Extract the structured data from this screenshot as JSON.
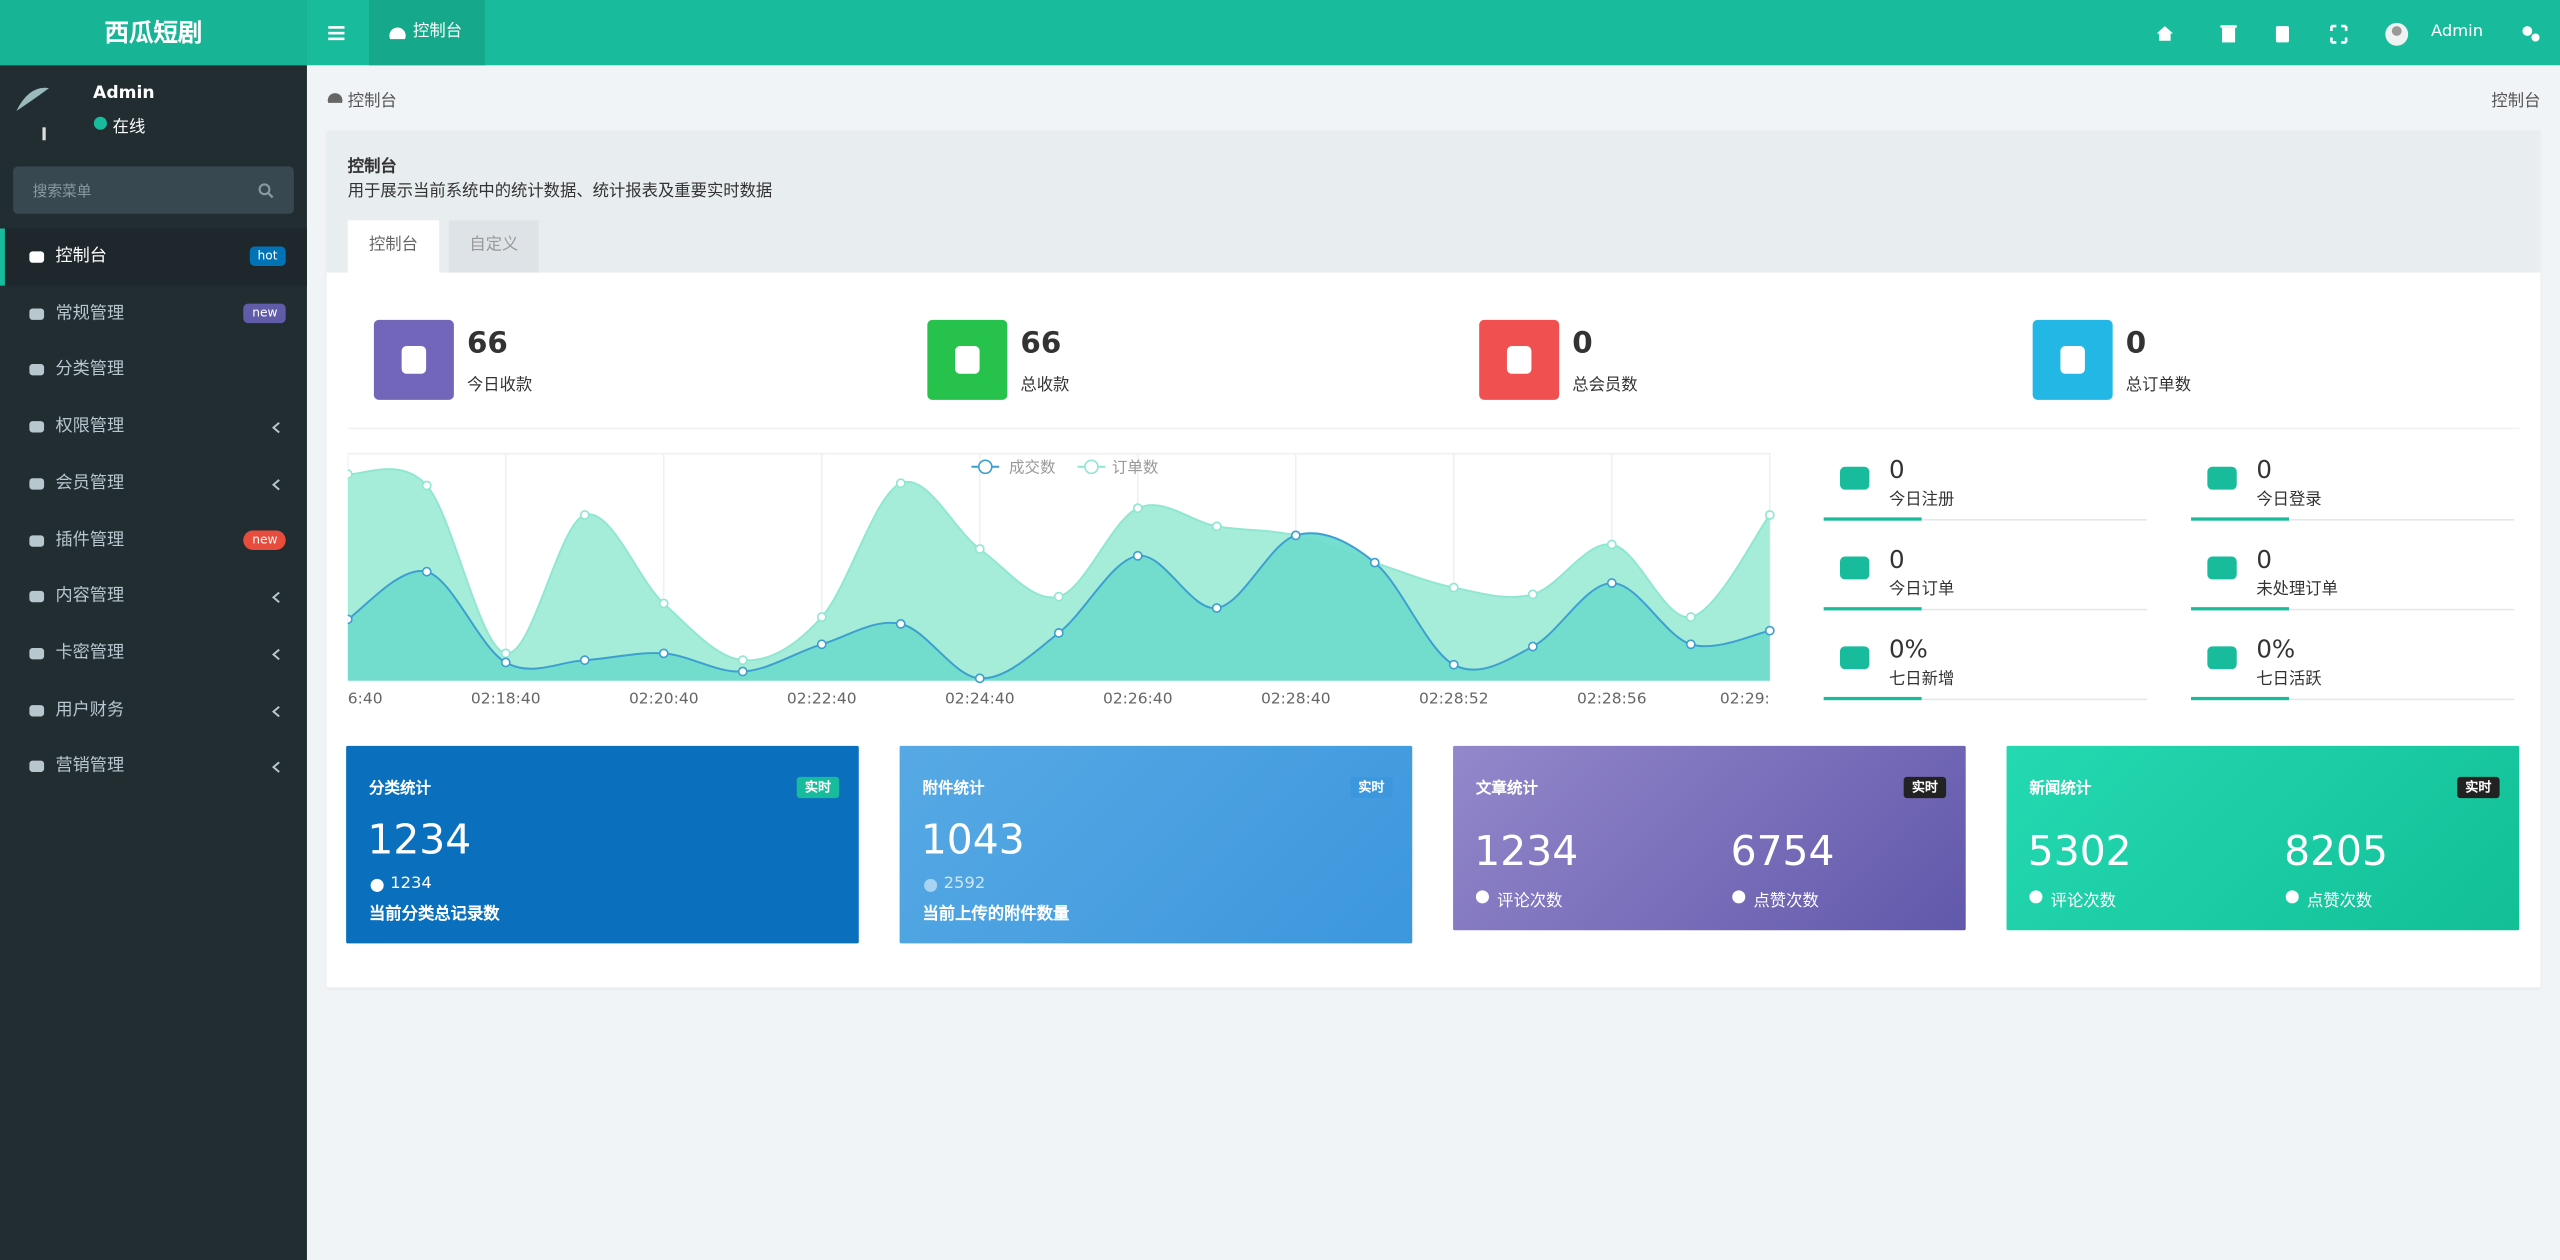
{
  "header": {
    "logo": "西瓜短剧",
    "tab": "控制台",
    "user": "Admin"
  },
  "sidebar": {
    "user": "Admin",
    "status": "在线",
    "search_placeholder": "搜索菜单",
    "menu": [
      {
        "label": "控制台",
        "badge": "hot",
        "badge_color": "#0073b7"
      },
      {
        "label": "常规管理",
        "badge": "new",
        "badge_color": "#605ca8"
      },
      {
        "label": "分类管理"
      },
      {
        "label": "权限管理",
        "submenu": true
      },
      {
        "label": "会员管理",
        "submenu": true
      },
      {
        "label": "插件管理",
        "badge": "new",
        "badge_color": "#e74c3c"
      },
      {
        "label": "内容管理",
        "submenu": true
      },
      {
        "label": "卡密管理",
        "submenu": true
      },
      {
        "label": "用户财务",
        "submenu": true
      },
      {
        "label": "营销管理",
        "submenu": true
      }
    ]
  },
  "breadcrumb": {
    "left": "控制台",
    "right": "控制台"
  },
  "panel": {
    "title": "控制台",
    "description": "用于展示当前系统中的统计数据、统计报表及重要实时数据",
    "tabs": [
      "控制台",
      "自定义"
    ]
  },
  "stats": [
    {
      "value": 66,
      "label": "今日收款",
      "color": "#7266ba"
    },
    {
      "value": 66,
      "label": "总收款",
      "color": "#27c24c"
    },
    {
      "value": 0,
      "label": "总会员数",
      "color": "#f05050"
    },
    {
      "value": 0,
      "label": "总订单数",
      "color": "#23b7e5"
    }
  ],
  "chart": {
    "type": "area",
    "categories": [
      "6:40",
      null,
      "02:18:40",
      null,
      "02:20:40",
      null,
      "02:22:40",
      null,
      "02:24:40",
      null,
      "02:26:40",
      null,
      "02:28:40",
      null,
      "02:28:52",
      null,
      "02:28:56",
      null,
      "02:29:"
    ],
    "ylim": [
      0,
      100
    ],
    "series": [
      {
        "name": "成交数",
        "color": "#3c9fd0",
        "fill": "#6fdccb",
        "values": [
          27,
          48,
          8,
          9,
          12,
          4,
          16,
          25,
          1,
          21,
          55,
          32,
          64,
          52,
          7,
          15,
          43,
          16,
          22
        ]
      },
      {
        "name": "订单数",
        "color": "#8fe6d2",
        "fill": "#a0ecd7",
        "values": [
          91,
          86,
          12,
          73,
          34,
          9,
          28,
          87,
          58,
          37,
          76,
          68,
          64,
          52,
          41,
          38,
          60,
          28,
          73
        ]
      }
    ]
  },
  "mini_stats": [
    {
      "value": "0",
      "label": "今日注册"
    },
    {
      "value": "0",
      "label": "今日登录"
    },
    {
      "value": "0",
      "label": "今日订单"
    },
    {
      "value": "0",
      "label": "未处理订单"
    },
    {
      "value": "0%",
      "label": "七日新增"
    },
    {
      "value": "0%",
      "label": "七日活跃"
    }
  ],
  "cards": [
    {
      "title": "分类统计",
      "badge": "实时",
      "value": 1234,
      "sub_value": 1234,
      "sub_label": "当前分类总记录数"
    },
    {
      "title": "附件统计",
      "badge": "实时",
      "value": 1043,
      "sub_value": 2592,
      "sub_label": "当前上传的附件数量"
    },
    {
      "title": "文章统计",
      "badge": "实时",
      "metrics": [
        {
          "value": 1234,
          "label": "评论次数"
        },
        {
          "value": 6754,
          "label": "点赞次数"
        }
      ]
    },
    {
      "title": "新闻统计",
      "badge": "实时",
      "metrics": [
        {
          "value": 5302,
          "label": "评论次数"
        },
        {
          "value": 8205,
          "label": "点赞次数"
        }
      ]
    }
  ]
}
